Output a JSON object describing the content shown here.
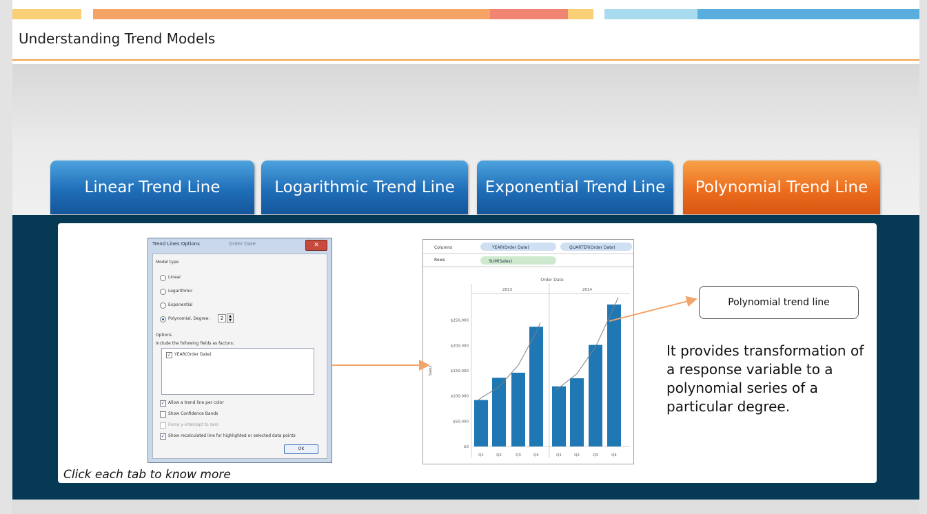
{
  "slide": {
    "title": "Understanding Trend Models",
    "hint": "Click each tab to know more"
  },
  "tabs": [
    {
      "label": "Linear Trend Line",
      "active": false
    },
    {
      "label": "Logarithmic Trend Line",
      "active": false
    },
    {
      "label": "Exponential Trend Line",
      "active": false
    },
    {
      "label": "Polynomial Trend Line",
      "active": true
    }
  ],
  "dialog": {
    "title": "Trend Lines Options",
    "title_suffix": "Order Date",
    "model_type_label": "Model type",
    "model_options": [
      "Linear",
      "Logarithmic",
      "Exponential",
      "Polynomial, Degree:"
    ],
    "selected_model": "Polynomial, Degree:",
    "degree": "2",
    "options_label": "Options",
    "factors_label": "Include the following fields as factors:",
    "factor_field": "YEAR(Order Date)",
    "checkboxes": [
      {
        "label": "Allow a trend line per color",
        "checked": true
      },
      {
        "label": "Show Confidence Bands",
        "checked": false
      },
      {
        "label": "Force y-intercept to zero",
        "checked": false
      },
      {
        "label": "Show recalculated line for highlighted or selected data points",
        "checked": true
      }
    ],
    "ok_label": "OK"
  },
  "shelf": {
    "columns_label": "Columns",
    "rows_label": "Rows",
    "column_pills": [
      "YEAR(Order Date)",
      "QUARTER(Order Date)"
    ],
    "row_pill": "SUM(Sales)"
  },
  "chart_data": {
    "type": "bar",
    "title": "Order Date",
    "ylabel": "Sales",
    "groups": [
      "2013",
      "2014"
    ],
    "categories": [
      "Q1",
      "Q2",
      "Q3",
      "Q4",
      "Q1",
      "Q2",
      "Q3",
      "Q4"
    ],
    "values": [
      92000,
      136000,
      146000,
      237000,
      119000,
      135000,
      201000,
      281000
    ],
    "trend": [
      [
        96000,
        118000,
        161000,
        226000
      ],
      [
        116000,
        144000,
        197000,
        276000
      ]
    ],
    "yticks": [
      "$0",
      "$50,000",
      "$100,000",
      "$150,000",
      "$200,000",
      "$250,000"
    ],
    "ylim": [
      0,
      300000
    ],
    "bar_color": "#1f77b4"
  },
  "callout": {
    "label": "Polynomial trend line"
  },
  "description": "It provides transformation of a response variable to a polynomial series of a particular degree.",
  "colors": {
    "accent_orange": "#ed6d1d",
    "tab_blue": "#1f6eb8",
    "navy": "#063a54"
  }
}
